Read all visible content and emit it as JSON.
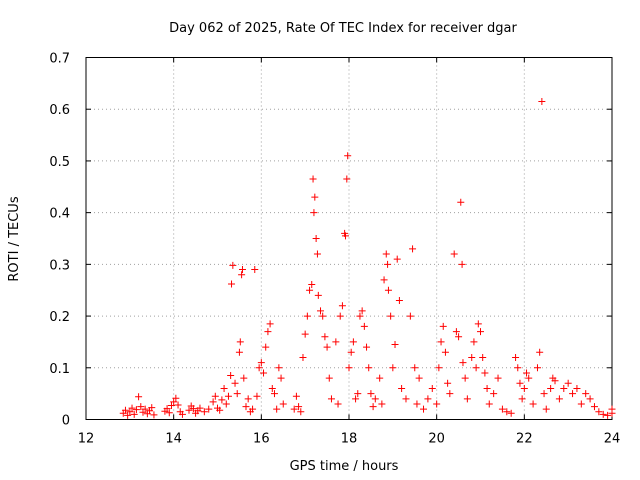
{
  "chart_data": {
    "type": "scatter",
    "title": "Day 062 of 2025, Rate Of TEC Index for receiver dgar",
    "xlabel": "GPS time / hours",
    "ylabel": "ROTI / TECUs",
    "xlim": [
      12,
      24
    ],
    "ylim": [
      0,
      0.7
    ],
    "xticks": [
      12,
      14,
      16,
      18,
      20,
      22,
      24
    ],
    "yticks": [
      0,
      0.1,
      0.2,
      0.3,
      0.4,
      0.5,
      0.6,
      0.7
    ],
    "xtick_labels": [
      "12",
      "14",
      "16",
      "18",
      "20",
      "22",
      "24"
    ],
    "ytick_labels": [
      "0",
      "0.1",
      "0.2",
      "0.3",
      "0.4",
      "0.5",
      "0.6",
      "0.7"
    ],
    "grid": true,
    "marker": "plus",
    "color": "#ff0000",
    "series": [
      {
        "name": "ROTI",
        "points": [
          [
            12.85,
            0.012
          ],
          [
            12.9,
            0.018
          ],
          [
            12.95,
            0.008
          ],
          [
            13.0,
            0.015
          ],
          [
            13.05,
            0.022
          ],
          [
            13.1,
            0.01
          ],
          [
            13.15,
            0.019
          ],
          [
            13.2,
            0.044
          ],
          [
            13.25,
            0.025
          ],
          [
            13.3,
            0.014
          ],
          [
            13.35,
            0.02
          ],
          [
            13.4,
            0.011
          ],
          [
            13.45,
            0.017
          ],
          [
            13.5,
            0.023
          ],
          [
            13.55,
            0.009
          ],
          [
            13.8,
            0.016
          ],
          [
            13.85,
            0.021
          ],
          [
            13.9,
            0.013
          ],
          [
            13.95,
            0.027
          ],
          [
            14.0,
            0.034
          ],
          [
            14.05,
            0.041
          ],
          [
            14.1,
            0.028
          ],
          [
            14.15,
            0.015
          ],
          [
            14.2,
            0.01
          ],
          [
            14.35,
            0.018
          ],
          [
            14.4,
            0.026
          ],
          [
            14.45,
            0.021
          ],
          [
            14.5,
            0.012
          ],
          [
            14.55,
            0.017
          ],
          [
            14.6,
            0.022
          ],
          [
            14.7,
            0.015
          ],
          [
            14.8,
            0.02
          ],
          [
            14.9,
            0.034
          ],
          [
            14.95,
            0.045
          ],
          [
            15.0,
            0.022
          ],
          [
            15.05,
            0.018
          ],
          [
            15.1,
            0.038
          ],
          [
            15.15,
            0.06
          ],
          [
            15.2,
            0.03
          ],
          [
            15.25,
            0.045
          ],
          [
            15.3,
            0.085
          ],
          [
            15.32,
            0.262
          ],
          [
            15.35,
            0.298
          ],
          [
            15.4,
            0.07
          ],
          [
            15.45,
            0.05
          ],
          [
            15.5,
            0.13
          ],
          [
            15.52,
            0.15
          ],
          [
            15.55,
            0.28
          ],
          [
            15.57,
            0.29
          ],
          [
            15.6,
            0.08
          ],
          [
            15.65,
            0.025
          ],
          [
            15.7,
            0.04
          ],
          [
            15.75,
            0.015
          ],
          [
            15.8,
            0.02
          ],
          [
            15.85,
            0.29
          ],
          [
            15.9,
            0.045
          ],
          [
            15.95,
            0.1
          ],
          [
            16.0,
            0.11
          ],
          [
            16.05,
            0.09
          ],
          [
            16.1,
            0.14
          ],
          [
            16.15,
            0.17
          ],
          [
            16.2,
            0.185
          ],
          [
            16.25,
            0.06
          ],
          [
            16.3,
            0.05
          ],
          [
            16.35,
            0.02
          ],
          [
            16.4,
            0.1
          ],
          [
            16.45,
            0.08
          ],
          [
            16.5,
            0.03
          ],
          [
            16.75,
            0.02
          ],
          [
            16.8,
            0.045
          ],
          [
            16.85,
            0.025
          ],
          [
            16.9,
            0.015
          ],
          [
            16.95,
            0.12
          ],
          [
            17.0,
            0.165
          ],
          [
            17.05,
            0.2
          ],
          [
            17.1,
            0.25
          ],
          [
            17.15,
            0.261
          ],
          [
            17.18,
            0.465
          ],
          [
            17.2,
            0.4
          ],
          [
            17.22,
            0.43
          ],
          [
            17.25,
            0.35
          ],
          [
            17.28,
            0.32
          ],
          [
            17.3,
            0.24
          ],
          [
            17.35,
            0.21
          ],
          [
            17.4,
            0.2
          ],
          [
            17.45,
            0.16
          ],
          [
            17.5,
            0.14
          ],
          [
            17.55,
            0.08
          ],
          [
            17.6,
            0.04
          ],
          [
            17.7,
            0.15
          ],
          [
            17.75,
            0.03
          ],
          [
            17.8,
            0.2
          ],
          [
            17.85,
            0.22
          ],
          [
            17.9,
            0.36
          ],
          [
            17.92,
            0.355
          ],
          [
            17.95,
            0.465
          ],
          [
            17.97,
            0.51
          ],
          [
            18.0,
            0.1
          ],
          [
            18.05,
            0.13
          ],
          [
            18.1,
            0.15
          ],
          [
            18.15,
            0.04
          ],
          [
            18.2,
            0.05
          ],
          [
            18.25,
            0.2
          ],
          [
            18.3,
            0.21
          ],
          [
            18.35,
            0.18
          ],
          [
            18.4,
            0.14
          ],
          [
            18.45,
            0.1
          ],
          [
            18.5,
            0.05
          ],
          [
            18.55,
            0.025
          ],
          [
            18.6,
            0.04
          ],
          [
            18.7,
            0.08
          ],
          [
            18.75,
            0.03
          ],
          [
            18.8,
            0.27
          ],
          [
            18.85,
            0.32
          ],
          [
            18.88,
            0.3
          ],
          [
            18.9,
            0.25
          ],
          [
            18.95,
            0.2
          ],
          [
            19.0,
            0.1
          ],
          [
            19.05,
            0.145
          ],
          [
            19.1,
            0.31
          ],
          [
            19.15,
            0.23
          ],
          [
            19.2,
            0.06
          ],
          [
            19.3,
            0.04
          ],
          [
            19.4,
            0.2
          ],
          [
            19.45,
            0.33
          ],
          [
            19.5,
            0.1
          ],
          [
            19.55,
            0.03
          ],
          [
            19.6,
            0.08
          ],
          [
            19.7,
            0.02
          ],
          [
            19.8,
            0.04
          ],
          [
            19.9,
            0.06
          ],
          [
            20.0,
            0.03
          ],
          [
            20.05,
            0.1
          ],
          [
            20.1,
            0.15
          ],
          [
            20.15,
            0.18
          ],
          [
            20.2,
            0.13
          ],
          [
            20.25,
            0.07
          ],
          [
            20.3,
            0.05
          ],
          [
            20.4,
            0.32
          ],
          [
            20.45,
            0.17
          ],
          [
            20.5,
            0.16
          ],
          [
            20.55,
            0.42
          ],
          [
            20.58,
            0.3
          ],
          [
            20.6,
            0.11
          ],
          [
            20.65,
            0.08
          ],
          [
            20.7,
            0.04
          ],
          [
            20.8,
            0.12
          ],
          [
            20.85,
            0.15
          ],
          [
            20.9,
            0.1
          ],
          [
            20.95,
            0.185
          ],
          [
            21.0,
            0.17
          ],
          [
            21.05,
            0.12
          ],
          [
            21.1,
            0.09
          ],
          [
            21.15,
            0.06
          ],
          [
            21.2,
            0.03
          ],
          [
            21.3,
            0.05
          ],
          [
            21.4,
            0.08
          ],
          [
            21.5,
            0.02
          ],
          [
            21.6,
            0.015
          ],
          [
            21.7,
            0.012
          ],
          [
            21.8,
            0.12
          ],
          [
            21.85,
            0.1
          ],
          [
            21.9,
            0.07
          ],
          [
            21.95,
            0.04
          ],
          [
            22.0,
            0.06
          ],
          [
            22.05,
            0.09
          ],
          [
            22.1,
            0.08
          ],
          [
            22.2,
            0.03
          ],
          [
            22.3,
            0.1
          ],
          [
            22.35,
            0.13
          ],
          [
            22.4,
            0.615
          ],
          [
            22.45,
            0.05
          ],
          [
            22.5,
            0.02
          ],
          [
            22.6,
            0.06
          ],
          [
            22.65,
            0.08
          ],
          [
            22.7,
            0.075
          ],
          [
            22.8,
            0.04
          ],
          [
            22.9,
            0.06
          ],
          [
            23.0,
            0.07
          ],
          [
            23.1,
            0.05
          ],
          [
            23.2,
            0.06
          ],
          [
            23.3,
            0.03
          ],
          [
            23.4,
            0.05
          ],
          [
            23.5,
            0.04
          ],
          [
            23.6,
            0.025
          ],
          [
            23.7,
            0.015
          ],
          [
            23.8,
            0.01
          ],
          [
            23.9,
            0.008
          ],
          [
            24.0,
            0.012
          ],
          [
            24.0,
            0.02
          ]
        ]
      }
    ]
  }
}
